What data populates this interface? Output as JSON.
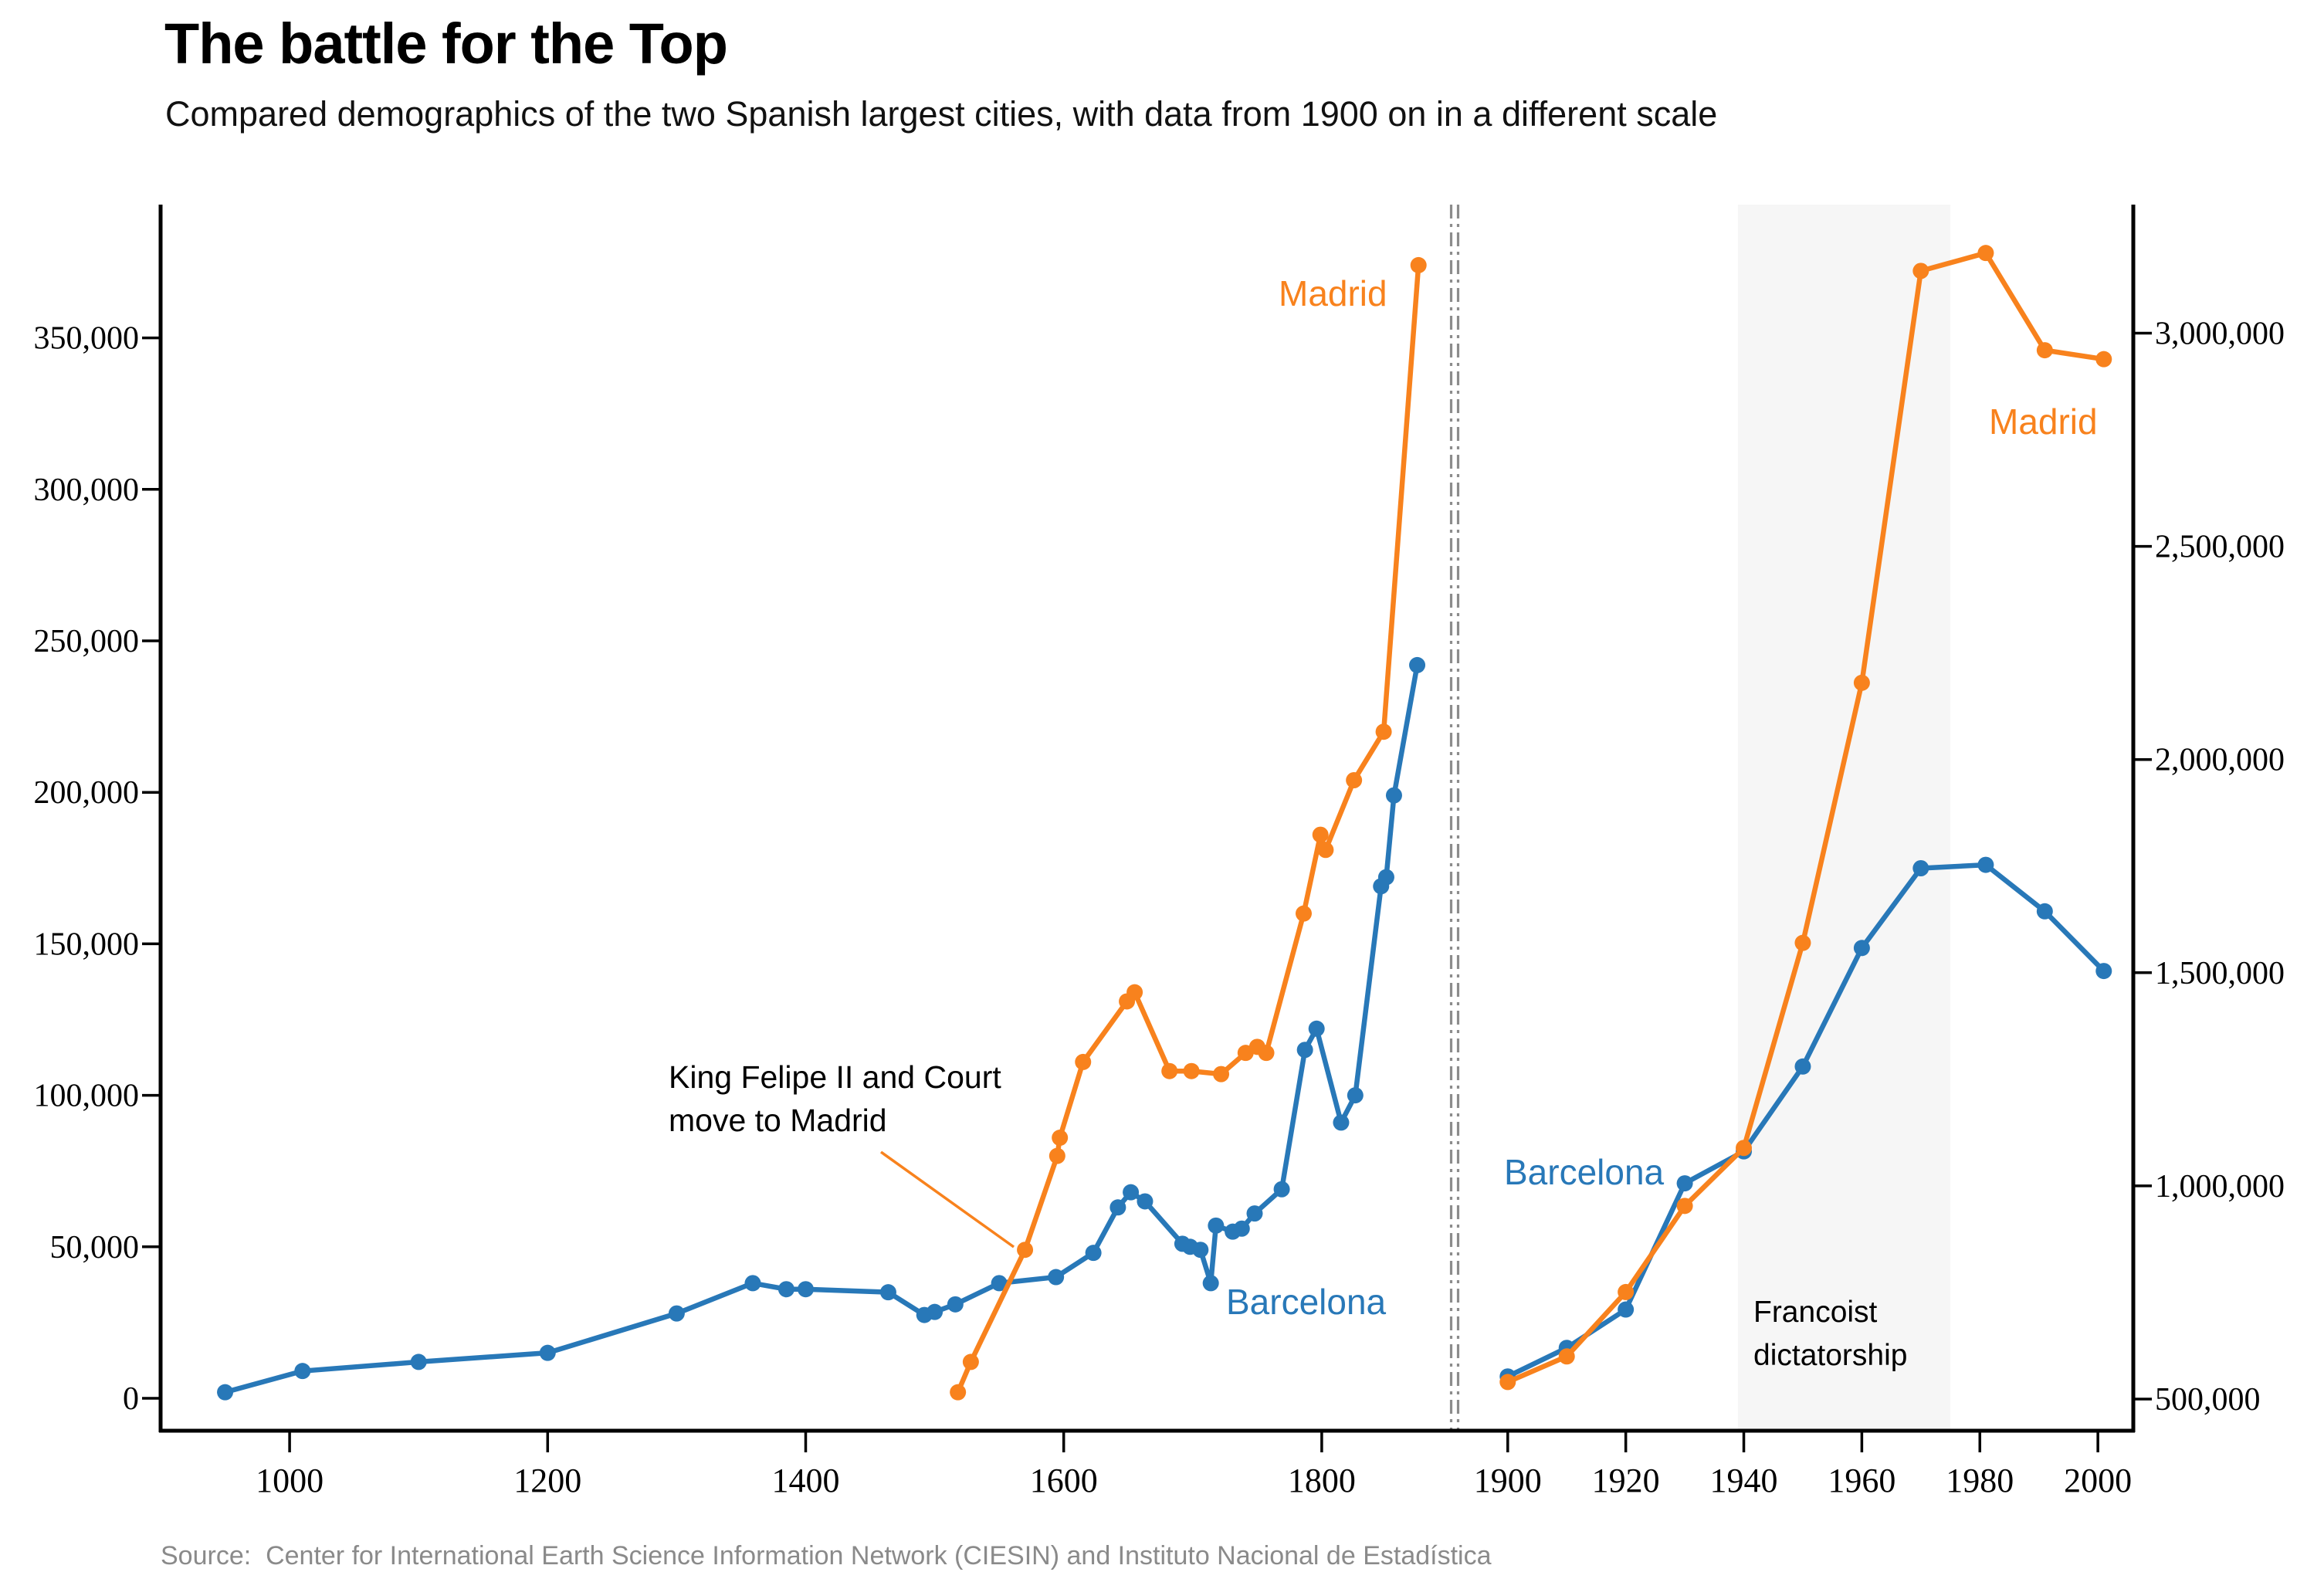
{
  "header": {
    "title": "The battle for the Top",
    "subtitle": "Compared demographics of the two Spanish largest cities, with data from 1900 on in a different scale"
  },
  "source": {
    "text": "Source:  Center for International Earth Science Information Network (CIESIN) and Instituto Nacional de Estadística"
  },
  "colors": {
    "madrid": "#f8821d",
    "barcelona": "#2878b8",
    "axis": "#000000",
    "divider": "#8c8c8c",
    "band_fill": "#f6f6f6",
    "annotation_text": "#000000",
    "source_text": "#8a8a8a"
  },
  "chart_data": {
    "type": "line",
    "title": "The battle for the Top",
    "subtitle": "Compared demographics of the two Spanish largest cities, with data from 1900 on in a different scale",
    "grid": false,
    "legend_position": "inline-labels",
    "panels": [
      {
        "name": "pre-1900",
        "x_domain": [
          900,
          1903
        ],
        "x_ticks": [
          {
            "v": 1000,
            "label": "1000"
          },
          {
            "v": 1200,
            "label": "1200"
          },
          {
            "v": 1400,
            "label": "1400"
          },
          {
            "v": 1600,
            "label": "1600"
          },
          {
            "v": 1800,
            "label": "1800"
          }
        ],
        "y_axis_side": "left",
        "y_domain": [
          0,
          390000
        ],
        "y_ticks": [
          {
            "v": 0,
            "label": "0"
          },
          {
            "v": 50000,
            "label": "50,000"
          },
          {
            "v": 100000,
            "label": "100,000"
          },
          {
            "v": 150000,
            "label": "150,000"
          },
          {
            "v": 200000,
            "label": "200,000"
          },
          {
            "v": 250000,
            "label": "250,000"
          },
          {
            "v": 300000,
            "label": "300,000"
          },
          {
            "v": 350000,
            "label": "350,000"
          }
        ],
        "series": [
          {
            "name": "Madrid",
            "color_key": "madrid",
            "label_text": "Madrid",
            "points": [
              [
                1518,
                2000
              ],
              [
                1528,
                12000
              ],
              [
                1570,
                49000
              ],
              [
                1595,
                80000
              ],
              [
                1597,
                86000
              ],
              [
                1615,
                111000
              ],
              [
                1649,
                131000
              ],
              [
                1655,
                134000
              ],
              [
                1682,
                108000
              ],
              [
                1699,
                108000
              ],
              [
                1722,
                107000
              ],
              [
                1741,
                114000
              ],
              [
                1750,
                116000
              ],
              [
                1757,
                114000
              ],
              [
                1786,
                160000
              ],
              [
                1799,
                186000
              ],
              [
                1803,
                181000
              ],
              [
                1825,
                204000
              ],
              [
                1848,
                220000
              ],
              [
                1875,
                374000
              ]
            ]
          },
          {
            "name": "Barcelona",
            "color_key": "barcelona",
            "label_text": "Barcelona",
            "points": [
              [
                950,
                2000
              ],
              [
                1010,
                9000
              ],
              [
                1100,
                12000
              ],
              [
                1200,
                15000
              ],
              [
                1300,
                28000
              ],
              [
                1359,
                38000
              ],
              [
                1385,
                36000
              ],
              [
                1400,
                36000
              ],
              [
                1464,
                35000
              ],
              [
                1492,
                27500
              ],
              [
                1500,
                28500
              ],
              [
                1516,
                31000
              ],
              [
                1550,
                38000
              ],
              [
                1594,
                40000
              ],
              [
                1623,
                48000
              ],
              [
                1642,
                63000
              ],
              [
                1652,
                68000
              ],
              [
                1663,
                65000
              ],
              [
                1692,
                51000
              ],
              [
                1698,
                50000
              ],
              [
                1706,
                49000
              ],
              [
                1714,
                38000
              ],
              [
                1718,
                57000
              ],
              [
                1731,
                55000
              ],
              [
                1738,
                56000
              ],
              [
                1748,
                61000
              ],
              [
                1769,
                69000
              ],
              [
                1787,
                115000
              ],
              [
                1796,
                122000
              ],
              [
                1815,
                91000
              ],
              [
                1826,
                100000
              ],
              [
                1846,
                169000
              ],
              [
                1850,
                172000
              ],
              [
                1856,
                199000
              ],
              [
                1874,
                242000
              ]
            ]
          }
        ]
      },
      {
        "name": "post-1900",
        "x_domain": [
          1891,
          2006
        ],
        "x_ticks": [
          {
            "v": 1900,
            "label": "1900"
          },
          {
            "v": 1920,
            "label": "1920"
          },
          {
            "v": 1940,
            "label": "1940"
          },
          {
            "v": 1960,
            "label": "1960"
          },
          {
            "v": 1980,
            "label": "1980"
          },
          {
            "v": 2000,
            "label": "2000"
          }
        ],
        "y_axis_side": "right",
        "y_domain": [
          500000,
          3300000
        ],
        "y_ticks": [
          {
            "v": 500000,
            "label": "500,000"
          },
          {
            "v": 1000000,
            "label": "1,000,000"
          },
          {
            "v": 1500000,
            "label": "1,500,000"
          },
          {
            "v": 2000000,
            "label": "2,000,000"
          },
          {
            "v": 2500000,
            "label": "2,500,000"
          },
          {
            "v": 3000000,
            "label": "3,000,000"
          }
        ],
        "band": {
          "label_lines": [
            "Francoist",
            "dictatorship"
          ],
          "from_year": 1939,
          "to_year": 1975
        },
        "series": [
          {
            "name": "Madrid",
            "color_key": "madrid",
            "label_text": "Madrid",
            "points": [
              [
                1900,
                540000
              ],
              [
                1910,
                600000
              ],
              [
                1920,
                751000
              ],
              [
                1930,
                953000
              ],
              [
                1940,
                1089000
              ],
              [
                1950,
                1570000
              ],
              [
                1960,
                2180000
              ],
              [
                1970,
                3146000
              ],
              [
                1981,
                3188000
              ],
              [
                1991,
                2960000
              ],
              [
                2001,
                2939000
              ]
            ]
          },
          {
            "name": "Barcelona",
            "color_key": "barcelona",
            "label_text": "Barcelona",
            "points": [
              [
                1900,
                553000
              ],
              [
                1910,
                620000
              ],
              [
                1920,
                710000
              ],
              [
                1930,
                1006000
              ],
              [
                1940,
                1081000
              ],
              [
                1950,
                1280000
              ],
              [
                1960,
                1558000
              ],
              [
                1970,
                1745000
              ],
              [
                1981,
                1753000
              ],
              [
                1991,
                1644000
              ],
              [
                2001,
                1504000
              ]
            ]
          }
        ]
      }
    ],
    "annotation": {
      "lines": [
        "King Felipe II and Court",
        "move to Madrid"
      ]
    }
  }
}
